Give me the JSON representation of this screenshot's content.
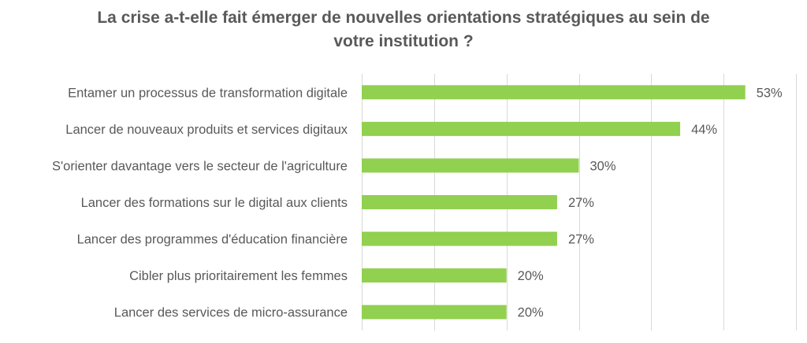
{
  "chart_data": {
    "type": "bar",
    "orientation": "horizontal",
    "title_line1": "La crise a-t-elle fait émerger de nouvelles orientations stratégiques au sein de",
    "title_line2": "votre institution ?",
    "categories": [
      "Entamer un processus de transformation digitale",
      "Lancer de nouveaux produits et services digitaux",
      "S'orienter davantage vers le secteur de l'agriculture",
      "Lancer des formations sur le digital aux clients",
      "Lancer des programmes d'éducation financière",
      "Cibler plus prioritairement les femmes",
      "Lancer des services de micro-assurance"
    ],
    "values": [
      53,
      44,
      30,
      27,
      27,
      20,
      20
    ],
    "data_labels": [
      "53%",
      "44%",
      "30%",
      "27%",
      "27%",
      "20%",
      "20%"
    ],
    "xlim": [
      0,
      60
    ],
    "grid": true,
    "legend": "none",
    "colors": {
      "bar": "#92d050",
      "grid": "#d9d9d9",
      "text": "#595959"
    }
  }
}
